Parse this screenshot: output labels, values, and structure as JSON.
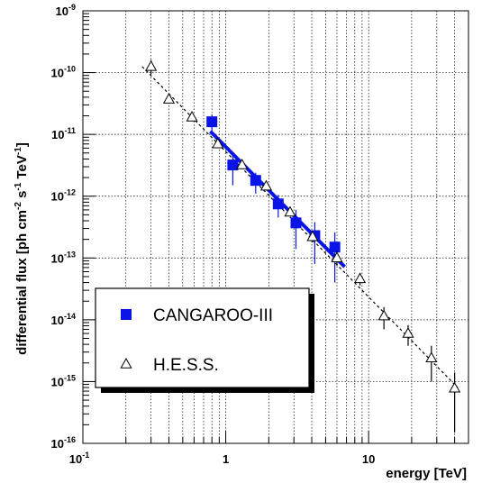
{
  "chart_data": {
    "type": "scatter",
    "xlabel": "energy [TeV]",
    "ylabel": "differential flux [ph cm^-2 s^-1 TeV^-1]",
    "ylabel_parts": [
      "differential flux [ph cm",
      "-2",
      " s",
      "-1",
      " TeV",
      "-1",
      "]"
    ],
    "xscale": "log",
    "yscale": "log",
    "xlim": [
      0.1,
      50
    ],
    "ylim": [
      1e-16,
      1e-09
    ],
    "grid": true,
    "legend_placement": "lower-left",
    "x_ticks": [
      {
        "value": 0.1,
        "base": "10",
        "exp": "-1"
      },
      {
        "value": 1,
        "base": "1",
        "exp": ""
      },
      {
        "value": 10,
        "base": "10",
        "exp": ""
      }
    ],
    "y_ticks": [
      {
        "value": 1e-16,
        "base": "10",
        "exp": "-16"
      },
      {
        "value": 1e-15,
        "base": "10",
        "exp": "-15"
      },
      {
        "value": 1e-14,
        "base": "10",
        "exp": "-14"
      },
      {
        "value": 1e-13,
        "base": "10",
        "exp": "-13"
      },
      {
        "value": 1e-12,
        "base": "10",
        "exp": "-12"
      },
      {
        "value": 1e-11,
        "base": "10",
        "exp": "-11"
      },
      {
        "value": 1e-10,
        "base": "10",
        "exp": "-10"
      },
      {
        "value": 1e-09,
        "base": "10",
        "exp": "-9"
      }
    ],
    "series": [
      {
        "name": "CANGAROO-III",
        "marker": "filled-square",
        "color": "#0a14e6",
        "points": [
          {
            "x": 0.8,
            "y": 1.6e-11,
            "ylo": 1e-11,
            "yhi": 2.1e-11
          },
          {
            "x": 1.12,
            "y": 3.2e-12,
            "ylo": 1.5e-12,
            "yhi": 4.8e-12
          },
          {
            "x": 1.62,
            "y": 1.8e-12,
            "ylo": 1.1e-12,
            "yhi": 2.4e-12
          },
          {
            "x": 2.33,
            "y": 7.5e-13,
            "ylo": 4.5e-13,
            "yhi": 1.05e-12
          },
          {
            "x": 3.1,
            "y": 3.7e-13,
            "ylo": 1.4e-13,
            "yhi": 6e-13
          },
          {
            "x": 4.2,
            "y": 2.3e-13,
            "ylo": 8e-14,
            "yhi": 3.8e-13
          },
          {
            "x": 5.8,
            "y": 1.5e-13,
            "ylo": 4e-14,
            "yhi": 2.6e-13
          }
        ]
      },
      {
        "name": "H.E.S.S.",
        "marker": "open-triangle",
        "color": "#000000",
        "points": [
          {
            "x": 0.3,
            "y": 1.25e-10,
            "ylo": 9.5e-11,
            "yhi": 1.6e-10
          },
          {
            "x": 0.4,
            "y": 3.7e-11,
            "ylo": 3.2e-11,
            "yhi": 4.3e-11
          },
          {
            "x": 0.58,
            "y": 1.9e-11,
            "ylo": 1.7e-11,
            "yhi": 2.1e-11
          },
          {
            "x": 0.88,
            "y": 7e-12,
            "ylo": 6.3e-12,
            "yhi": 7.8e-12
          },
          {
            "x": 1.3,
            "y": 3.2e-12,
            "ylo": 2.9e-12,
            "yhi": 3.5e-12
          },
          {
            "x": 1.92,
            "y": 1.45e-12,
            "ylo": 1.3e-12,
            "yhi": 1.6e-12
          },
          {
            "x": 2.82,
            "y": 5.5e-13,
            "ylo": 4.8e-13,
            "yhi": 6.2e-13
          },
          {
            "x": 4.05,
            "y": 2.2e-13,
            "ylo": 1.8e-13,
            "yhi": 2.7e-13
          },
          {
            "x": 6.0,
            "y": 1e-13,
            "ylo": 7.5e-14,
            "yhi": 1.3e-13
          },
          {
            "x": 8.7,
            "y": 4.6e-14,
            "ylo": 3.6e-14,
            "yhi": 5.7e-14
          },
          {
            "x": 12.8,
            "y": 1.15e-14,
            "ylo": 7e-15,
            "yhi": 1.6e-14
          },
          {
            "x": 18.9,
            "y": 6e-15,
            "ylo": 3.8e-15,
            "yhi": 8.2e-15
          },
          {
            "x": 27.5,
            "y": 2.4e-15,
            "ylo": 1e-15,
            "yhi": 3.8e-15
          },
          {
            "x": 40.0,
            "y": 7.8e-16,
            "ylo": 1.5e-16,
            "yhi": 1.4e-15
          }
        ]
      }
    ],
    "fits": [
      {
        "series": "CANGAROO-III",
        "style": "solid-thick",
        "color": "#0a14e6",
        "x": [
          0.78,
          6.8
        ],
        "y": [
          1.12e-11,
          7.2e-14
        ]
      },
      {
        "series": "H.E.S.S.",
        "style": "dashed",
        "color": "#000000",
        "x": [
          0.26,
          42
        ],
        "y": [
          1.25e-10,
          8e-16
        ]
      }
    ],
    "legend": [
      {
        "label": "CANGAROO-III",
        "marker": "filled-square",
        "color": "#0a14e6"
      },
      {
        "label": "H.E.S.S.",
        "marker": "open-triangle",
        "color": "#000000"
      }
    ]
  }
}
